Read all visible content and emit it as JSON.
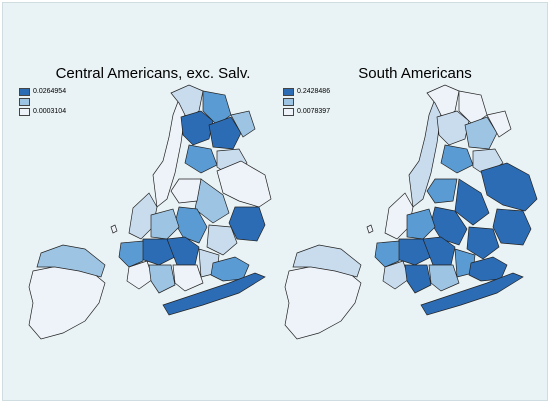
{
  "maps": [
    {
      "title": "Central Americans, exc. Salv.",
      "legend": [
        {
          "label": "0.0264954",
          "color": "#2c6cb5"
        },
        {
          "label": "",
          "color": "#9ec4e3"
        },
        {
          "label": "0.0003104",
          "color": "#eef3fa"
        }
      ]
    },
    {
      "title": "South Americans",
      "legend": [
        {
          "label": "0.2428486",
          "color": "#2c6cb5"
        },
        {
          "label": "",
          "color": "#9ec4e3"
        },
        {
          "label": "0.0078397",
          "color": "#eef3fa"
        }
      ]
    }
  ],
  "palette": {
    "c1": "#eef3fa",
    "c2": "#c9dcee",
    "c3": "#9ec4e3",
    "c4": "#5b9bd3",
    "c5": "#2c6cb5"
  }
}
